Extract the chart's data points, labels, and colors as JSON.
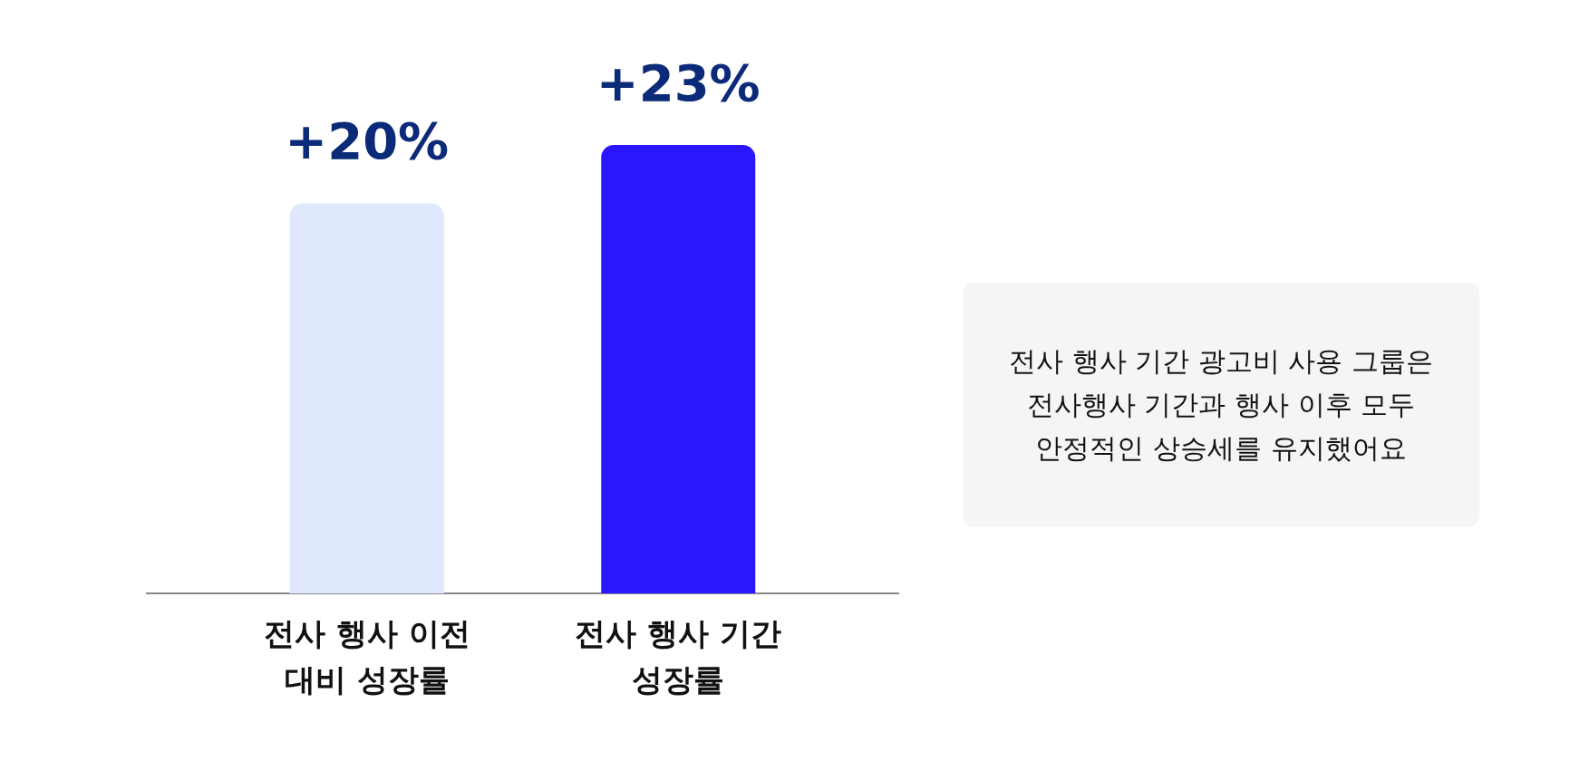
{
  "chart_data": {
    "type": "bar",
    "categories": [
      "전사 행사 이전 대비 성장률",
      "전사 행사 기간 성장률"
    ],
    "values": [
      20,
      23
    ],
    "colors": [
      "#dfe8fc",
      "#2b17ff"
    ],
    "value_labels": [
      "+20%",
      "+23%"
    ],
    "annotations": [
      "전사 행사 기간 광고비 사용 그룹은 전사행사 기간과 행사 이후 모두 안정적인 상승세를 유지했어요"
    ]
  }
}
